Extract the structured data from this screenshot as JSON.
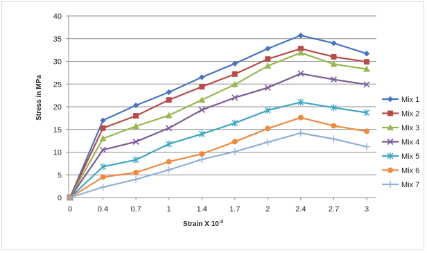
{
  "chart_data": {
    "type": "line",
    "title": "",
    "xlabel": "Strain X 10",
    "xlabel_superscript": "-3",
    "ylabel": "Stress in MPa",
    "categories": [
      "0",
      "0.4",
      "0.7",
      "1",
      "1.4",
      "1.7",
      "2",
      "2.4",
      "2.7",
      "3"
    ],
    "ylim": [
      0,
      40
    ],
    "yticks": [
      0,
      5,
      10,
      15,
      20,
      25,
      30,
      35,
      40
    ],
    "grid": "horizontal",
    "legend_position": "right",
    "series": [
      {
        "name": "Mix 1",
        "color": "#4572C4",
        "marker": "diamond",
        "values": [
          0,
          17.0,
          20.3,
          23.2,
          26.5,
          29.5,
          32.8,
          35.7,
          34.0,
          31.7
        ]
      },
      {
        "name": "Mix 2",
        "color": "#B84A47",
        "marker": "square",
        "values": [
          0,
          15.3,
          18.0,
          21.5,
          24.4,
          27.2,
          30.5,
          32.8,
          31.0,
          29.9
        ]
      },
      {
        "name": "Mix 3",
        "color": "#96B84E",
        "marker": "triangle",
        "values": [
          0,
          13.0,
          15.7,
          18.1,
          21.5,
          24.9,
          29.0,
          31.9,
          29.4,
          28.3
        ]
      },
      {
        "name": "Mix 4",
        "color": "#7A5899",
        "marker": "x",
        "values": [
          0,
          10.5,
          12.3,
          15.3,
          19.3,
          22.0,
          24.2,
          27.3,
          26.0,
          24.9
        ]
      },
      {
        "name": "Mix 5",
        "color": "#3DA6C4",
        "marker": "star",
        "values": [
          0,
          6.8,
          8.3,
          11.8,
          14.0,
          16.4,
          19.2,
          21.0,
          19.8,
          18.7
        ]
      },
      {
        "name": "Mix 6",
        "color": "#F0893D",
        "marker": "circle",
        "values": [
          0,
          4.5,
          5.5,
          7.9,
          9.6,
          12.3,
          15.2,
          17.6,
          15.8,
          14.6
        ]
      },
      {
        "name": "Mix 7",
        "color": "#8FAFDB",
        "marker": "plus",
        "values": [
          0,
          2.3,
          4.0,
          6.1,
          8.4,
          10.1,
          12.2,
          14.2,
          12.9,
          11.2
        ]
      }
    ]
  }
}
